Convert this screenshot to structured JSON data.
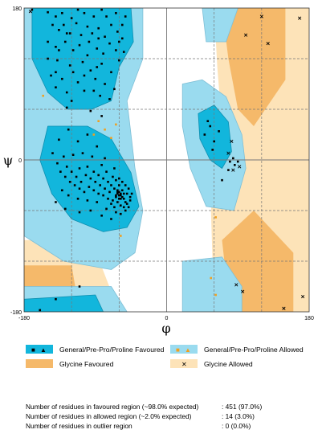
{
  "chart_data": {
    "type": "scatter",
    "title": "",
    "xlabel": "φ",
    "ylabel": "ψ",
    "xlim": [
      -180,
      180
    ],
    "ylim": [
      -180,
      180
    ],
    "x_ticks": [
      "-180",
      "0",
      "180"
    ],
    "y_ticks": [
      "180",
      "0",
      "-180"
    ],
    "grid": true,
    "colors": {
      "favoured": "#12b6dc",
      "allowed": "#9adbef",
      "glycine_favoured": "#f5b96a",
      "glycine_allowed": "#fde3b8",
      "outline": "#7fbfd6",
      "residue": "#000000",
      "glycine_outlier_marker": "#f0a020"
    },
    "series": [
      {
        "name": "General/Pre-Pro/Proline Favoured",
        "points": [
          [
            -170,
            178
          ],
          [
            -150,
            175
          ],
          [
            -140,
            170
          ],
          [
            -132,
            174
          ],
          [
            -120,
            168
          ],
          [
            -104,
            174
          ],
          [
            -92,
            170
          ],
          [
            -82,
            178
          ],
          [
            -64,
            174
          ],
          [
            -52,
            170
          ],
          [
            -144,
            160
          ],
          [
            -136,
            154
          ],
          [
            -126,
            150
          ],
          [
            -114,
            162
          ],
          [
            -108,
            148
          ],
          [
            -100,
            158
          ],
          [
            -94,
            150
          ],
          [
            -86,
            156
          ],
          [
            -78,
            146
          ],
          [
            -70,
            160
          ],
          [
            -62,
            152
          ],
          [
            -56,
            160
          ],
          [
            -150,
            140
          ],
          [
            -140,
            134
          ],
          [
            -128,
            140
          ],
          [
            -118,
            130
          ],
          [
            -110,
            136
          ],
          [
            -98,
            140
          ],
          [
            -88,
            132
          ],
          [
            -80,
            126
          ],
          [
            -72,
            138
          ],
          [
            -64,
            130
          ],
          [
            -56,
            144
          ],
          [
            -138,
            118
          ],
          [
            -122,
            112
          ],
          [
            -106,
            116
          ],
          [
            -96,
            106
          ],
          [
            -82,
            114
          ],
          [
            -70,
            104
          ],
          [
            -60,
            118
          ],
          [
            -146,
            100
          ],
          [
            -132,
            96
          ],
          [
            -112,
            92
          ],
          [
            -90,
            96
          ],
          [
            -78,
            90
          ],
          [
            -126,
            80
          ],
          [
            -104,
            82
          ],
          [
            -84,
            76
          ],
          [
            -66,
            84
          ],
          [
            -120,
            70
          ],
          [
            -96,
            58
          ],
          [
            -140,
            104
          ],
          [
            -100,
            124
          ],
          [
            -122,
            150
          ],
          [
            -60,
            140
          ],
          [
            -150,
            120
          ],
          [
            -130,
            160
          ],
          [
            -76,
            170
          ],
          [
            -112,
            178
          ],
          [
            -88,
            110
          ],
          [
            -72,
            72
          ],
          [
            -118,
            104
          ],
          [
            -136,
            130
          ],
          [
            -86,
            144
          ],
          [
            -104,
            100
          ],
          [
            -54,
            128
          ],
          [
            -140,
            86
          ],
          [
            -92,
            82
          ],
          [
            -126,
            62
          ],
          [
            -82,
            52
          ],
          [
            -110,
            -10
          ],
          [
            -100,
            -8
          ],
          [
            -92,
            -14
          ],
          [
            -86,
            -18
          ],
          [
            -80,
            -22
          ],
          [
            -74,
            -26
          ],
          [
            -70,
            -30
          ],
          [
            -66,
            -34
          ],
          [
            -62,
            -38
          ],
          [
            -58,
            -42
          ],
          [
            -54,
            -46
          ],
          [
            -50,
            -40
          ],
          [
            -46,
            -44
          ],
          [
            -64,
            -44
          ],
          [
            -60,
            -30
          ],
          [
            -56,
            -36
          ],
          [
            -52,
            -50
          ],
          [
            -68,
            -48
          ],
          [
            -72,
            -38
          ],
          [
            -78,
            -34
          ],
          [
            -84,
            -30
          ],
          [
            -90,
            -26
          ],
          [
            -96,
            -22
          ],
          [
            -102,
            -18
          ],
          [
            -108,
            -26
          ],
          [
            -114,
            -20
          ],
          [
            -120,
            -14
          ],
          [
            -126,
            -8
          ],
          [
            -130,
            4
          ],
          [
            -118,
            6
          ],
          [
            -106,
            8
          ],
          [
            -94,
            4
          ],
          [
            -82,
            -6
          ],
          [
            -76,
            -14
          ],
          [
            -68,
            -20
          ],
          [
            -64,
            -24
          ],
          [
            -60,
            -22
          ],
          [
            -56,
            -26
          ],
          [
            -52,
            -30
          ],
          [
            -48,
            -34
          ],
          [
            -62,
            -50
          ],
          [
            -58,
            -54
          ],
          [
            -54,
            -56
          ],
          [
            -50,
            -52
          ],
          [
            -66,
            -56
          ],
          [
            -70,
            -52
          ],
          [
            -74,
            -46
          ],
          [
            -80,
            -42
          ],
          [
            -86,
            -40
          ],
          [
            -92,
            -36
          ],
          [
            -98,
            -32
          ],
          [
            -104,
            -38
          ],
          [
            -110,
            -34
          ],
          [
            -116,
            -30
          ],
          [
            -122,
            -26
          ],
          [
            -128,
            -20
          ],
          [
            -134,
            -14
          ],
          [
            -138,
            -4
          ],
          [
            -132,
            -36
          ],
          [
            -124,
            -42
          ],
          [
            -112,
            -46
          ],
          [
            -100,
            -48
          ],
          [
            -88,
            -50
          ],
          [
            -76,
            -58
          ],
          [
            -64,
            -62
          ],
          [
            -58,
            -64
          ],
          [
            -52,
            -60
          ],
          [
            -48,
            -56
          ],
          [
            -46,
            -48
          ],
          [
            -44,
            -40
          ],
          [
            -62,
            -40
          ],
          [
            -60,
            -42
          ],
          [
            -58,
            -40
          ],
          [
            -56,
            -44
          ],
          [
            -60,
            -46
          ],
          [
            -62,
            -36
          ],
          [
            -58,
            -46
          ],
          [
            -54,
            -40
          ],
          [
            -64,
            -42
          ],
          [
            -60,
            -38
          ],
          [
            -100,
            30
          ],
          [
            -112,
            22
          ],
          [
            -88,
            16
          ],
          [
            -124,
            36
          ],
          [
            -136,
            24
          ],
          [
            -144,
            8
          ],
          [
            -78,
            2
          ],
          [
            -66,
            -10
          ],
          [
            -96,
            -60
          ],
          [
            -82,
            -66
          ],
          [
            -70,
            -70
          ],
          [
            -140,
            -50
          ],
          [
            -128,
            -58
          ],
          [
            -110,
            -62
          ],
          [
            55,
            40
          ],
          [
            48,
            30
          ],
          [
            60,
            22
          ],
          [
            52,
            46
          ],
          [
            66,
            34
          ],
          [
            58,
            12
          ],
          [
            80,
            -2
          ],
          [
            86,
            -6
          ],
          [
            84,
            2
          ],
          [
            78,
            -12
          ],
          [
            90,
            -2
          ],
          [
            70,
            -24
          ],
          [
            -110,
            -150
          ],
          [
            -140,
            -165
          ],
          [
            -160,
            -178
          ]
        ]
      },
      {
        "name": "General/Pre-Pro/Proline Allowed",
        "points": [
          [
            -156,
            76
          ],
          [
            -86,
            46
          ],
          [
            -78,
            36
          ],
          [
            -64,
            42
          ],
          [
            -92,
            30
          ],
          [
            -70,
            26
          ],
          [
            -58,
            -90
          ],
          [
            62,
            -68
          ],
          [
            56,
            -140
          ],
          [
            62,
            -160
          ]
        ]
      },
      {
        "name": "Glycine Favoured",
        "points": []
      },
      {
        "name": "Glycine Allowed",
        "points": [
          [
            -172,
            176
          ],
          [
            120,
            170
          ],
          [
            168,
            168
          ],
          [
            100,
            148
          ],
          [
            128,
            138
          ],
          [
            82,
            22
          ],
          [
            78,
            8
          ],
          [
            92,
            -8
          ],
          [
            84,
            -12
          ],
          [
            88,
            -148
          ],
          [
            96,
            -156
          ],
          [
            148,
            -176
          ],
          [
            172,
            -162
          ]
        ]
      }
    ]
  },
  "legend": [
    {
      "label": "General/Pre-Pro/Proline Favoured",
      "swatch": "#12b6dc",
      "marker_color": "#000000"
    },
    {
      "label": "General/Pre-Pro/Proline Allowed",
      "swatch": "#9adbef",
      "marker_color": "#f0a020"
    },
    {
      "label": "Glycine Favoured",
      "swatch": "#f5b96a",
      "marker_color": "#000000"
    },
    {
      "label": "Glycine Allowed",
      "swatch": "#fde3b8",
      "marker_color": "#000000"
    }
  ],
  "stats": [
    {
      "label": "Number of residues in favoured region (~98.0% expected)",
      "value": ":  451  (97.0%)"
    },
    {
      "label": "Number of residues in allowed region (~2.0% expected)",
      "value": ":  14  (3.0%)"
    },
    {
      "label": "Number of residues in outlier region",
      "value": ":  0  (0.0%)"
    }
  ]
}
